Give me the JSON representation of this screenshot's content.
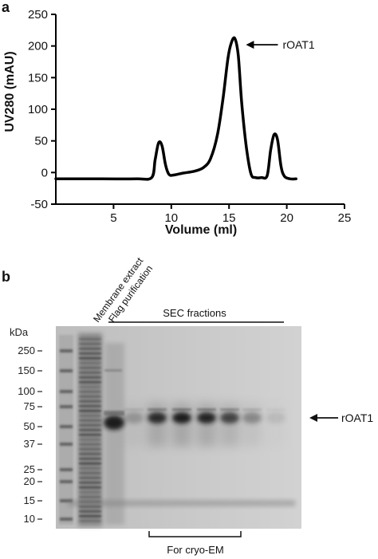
{
  "panel_a": {
    "label": "a",
    "chart_data": {
      "type": "line",
      "title": "",
      "xlabel": "Volume (ml)",
      "ylabel": "UV280 (mAU)",
      "xlim": [
        0,
        25
      ],
      "ylim": [
        -50,
        250
      ],
      "xticks": [
        5,
        10,
        15,
        20,
        25
      ],
      "yticks": [
        -50,
        0,
        50,
        100,
        150,
        200,
        250
      ],
      "grid": false,
      "series": [
        {
          "x": [
            0,
            4,
            7,
            8.3,
            8.6,
            8.9,
            9.2,
            9.5,
            9.8,
            10.2,
            11,
            12,
            12.8,
            13.4,
            14,
            14.5,
            14.9,
            15.2,
            15.5,
            15.8,
            16.1,
            16.5,
            16.9,
            17.3,
            17.8,
            18.3,
            18.6,
            18.9,
            19.2,
            19.5,
            19.8,
            20.3,
            20.8
          ],
          "y": [
            -10,
            -10,
            -10,
            -8,
            20,
            47,
            42,
            12,
            -3,
            -4,
            -1,
            2,
            8,
            22,
            60,
            120,
            180,
            205,
            212,
            185,
            110,
            40,
            -2,
            -8,
            -8,
            -5,
            35,
            60,
            52,
            10,
            -6,
            -10,
            -10
          ]
        }
      ],
      "annotations": [
        {
          "text": "rOAT1",
          "x": 15.5,
          "y": 212
        }
      ]
    }
  },
  "panel_b": {
    "label": "b",
    "mw_title": "kDa",
    "mw_markers": [
      "250",
      "150",
      "100",
      "75",
      "50",
      "37",
      "25",
      "20",
      "15",
      "10"
    ],
    "lane_labels": [
      "Membrane extract",
      "Flag purification"
    ],
    "sec_label": "SEC fractions",
    "cryo_label": "For cryo-EM",
    "band_label": "rOAT1",
    "colors": {
      "gel_background": "#c4c4c4",
      "band": "#1a1a1a"
    }
  }
}
